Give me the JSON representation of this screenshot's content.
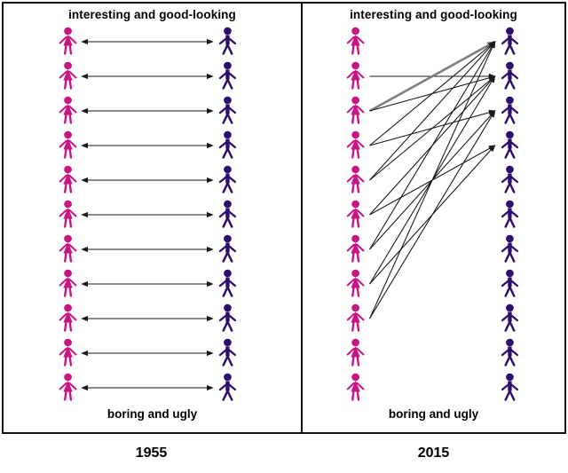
{
  "panels": [
    {
      "year_label": "1955",
      "top_label": "interesting and good-looking",
      "bottom_label": "boring and ugly",
      "women_count": 11,
      "men_count": 11,
      "arrow_style": "mutual",
      "arrows": [
        {
          "from": 0,
          "to": 0,
          "double": true
        },
        {
          "from": 1,
          "to": 1,
          "double": true
        },
        {
          "from": 2,
          "to": 2,
          "double": true
        },
        {
          "from": 3,
          "to": 3,
          "double": true
        },
        {
          "from": 4,
          "to": 4,
          "double": true
        },
        {
          "from": 5,
          "to": 5,
          "double": true
        },
        {
          "from": 6,
          "to": 6,
          "double": true
        },
        {
          "from": 7,
          "to": 7,
          "double": true
        },
        {
          "from": 8,
          "to": 8,
          "double": true
        },
        {
          "from": 9,
          "to": 9,
          "double": true
        },
        {
          "from": 10,
          "to": 10,
          "double": true
        }
      ]
    },
    {
      "year_label": "2015",
      "top_label": "interesting and good-looking",
      "bottom_label": "boring and ugly",
      "women_count": 11,
      "men_count": 11,
      "arrow_style": "one-way",
      "arrows": [
        {
          "from": 1,
          "to": 1
        },
        {
          "from": 2,
          "to": 0,
          "thick": true
        },
        {
          "from": 2,
          "to": 1
        },
        {
          "from": 3,
          "to": 0
        },
        {
          "from": 3,
          "to": 2
        },
        {
          "from": 4,
          "to": 0
        },
        {
          "from": 4,
          "to": 1
        },
        {
          "from": 5,
          "to": 1
        },
        {
          "from": 5,
          "to": 3
        },
        {
          "from": 6,
          "to": 0
        },
        {
          "from": 6,
          "to": 2
        },
        {
          "from": 7,
          "to": 1
        },
        {
          "from": 7,
          "to": 3
        },
        {
          "from": 8,
          "to": 0
        },
        {
          "from": 8,
          "to": 2
        }
      ]
    }
  ],
  "colors": {
    "female_figure": "#c91483",
    "male_figure": "#2e0d6e",
    "arrow": "#1a1a1a",
    "highlight_arrow": "#7f7f7f",
    "frame_border": "#111111"
  }
}
